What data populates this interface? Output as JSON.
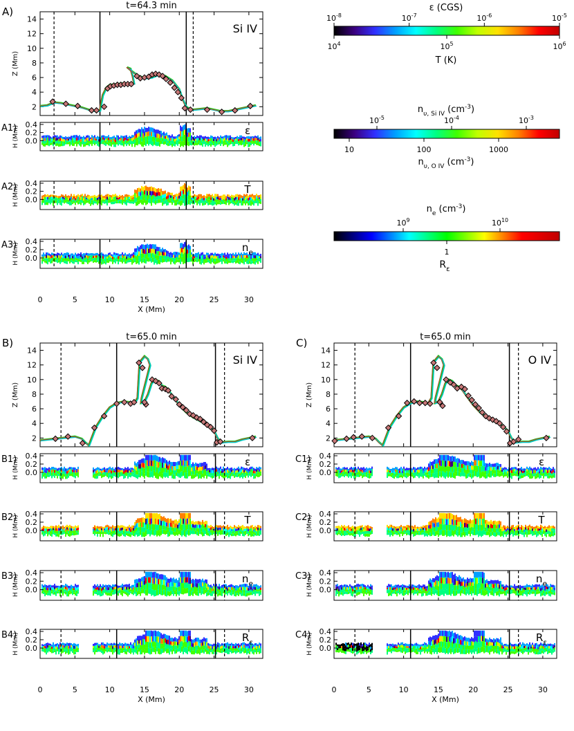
{
  "colors": {
    "line": "#000000",
    "marker_fill": "#c87878",
    "marker_edge": "#000000",
    "loop_green": "#1ec81e",
    "loop_cyan": "#00c8c8",
    "loop_red": "#c83232"
  },
  "colorbar_stops": [
    "#000000",
    "#3b0080",
    "#3030ff",
    "#00a0ff",
    "#00ffff",
    "#00ff80",
    "#40ff00",
    "#c0ff00",
    "#ffe000",
    "#ff8000",
    "#ff0000",
    "#c00000"
  ],
  "r_eps_stops": [
    "#000000",
    "#0000ff",
    "#00ffff",
    "#00ff00",
    "#ffff00",
    "#ff0000",
    "#c00000"
  ],
  "colorbars": {
    "epsilon": {
      "title": "ε (CGS)",
      "top_ticks": [
        "10",
        "10",
        "10",
        "10"
      ],
      "top_exps": [
        "-8",
        "-7",
        "-6",
        "-5"
      ],
      "bottom_ticks": [
        "10",
        "10",
        "10"
      ],
      "bottom_exps": [
        "4",
        "5",
        "6"
      ],
      "bottom_label": "T (K)"
    },
    "density": {
      "title_main": "n",
      "title_sub": "υ, Si IV",
      "title_units": "(cm",
      "title_exp": "-3",
      "top_ticks": [
        "10",
        "10",
        "10"
      ],
      "top_exps": [
        "-5",
        "-4",
        "-3"
      ],
      "bottom_ticks": [
        "10",
        "100",
        "1000"
      ],
      "bottom_label_main": "n",
      "bottom_label_sub": "υ, O IV",
      "bottom_label_units": "(cm",
      "bottom_label_exp": "-3"
    },
    "electron": {
      "title_main": "n",
      "title_sub": "e",
      "title_units": "(cm",
      "title_exp": "-3",
      "top_ticks": [
        "10",
        "10"
      ],
      "top_exps": [
        "9",
        "10"
      ],
      "bottom_tick": "1",
      "bottom_label_main": "R",
      "bottom_label_sub": "ε"
    }
  },
  "chart_data": [
    {
      "id": "A",
      "type": "line",
      "panel_label": "A)",
      "title": "t=64.3 min",
      "ion_label": "Si IV",
      "xlabel": "X (Mm)",
      "ylabel": "Z (Mm)",
      "xlim": [
        0,
        32
      ],
      "ylim": [
        0.8,
        15
      ],
      "x_ticks": [
        "0",
        "5",
        "10",
        "15",
        "20",
        "25",
        "30"
      ],
      "y_ticks": [
        2,
        4,
        6,
        8,
        10,
        12,
        14
      ],
      "solid_lines": [
        8.6,
        21.0
      ],
      "dashed_lines": [
        2.0,
        22.0
      ],
      "loop": {
        "x": [
          0,
          1,
          2,
          3,
          4,
          5,
          6,
          7,
          8,
          8.6,
          9,
          9.5,
          10,
          11,
          12,
          13,
          13.5,
          13.3,
          13,
          12.5,
          13,
          14,
          15,
          16,
          17,
          18,
          19,
          20,
          20.5,
          21,
          21.5,
          22,
          23,
          24,
          25,
          26,
          27,
          28,
          29,
          30,
          31
        ],
        "z": [
          2.1,
          2.2,
          2.6,
          2.5,
          2.3,
          2.1,
          1.9,
          1.6,
          1.4,
          1.5,
          3.6,
          4.6,
          5.0,
          5.1,
          5.2,
          5.2,
          5.2,
          6.2,
          7.2,
          7.4,
          7.0,
          6.3,
          5.9,
          6.0,
          6.4,
          6.2,
          5.6,
          4.4,
          3.0,
          2.0,
          1.7,
          1.6,
          1.7,
          1.8,
          1.6,
          1.4,
          1.4,
          1.6,
          1.8,
          2.0,
          2.2
        ]
      },
      "markers": {
        "x": [
          1.8,
          3.7,
          5.4,
          7.4,
          8.1,
          9.2,
          9.7,
          10.1,
          10.6,
          11.1,
          11.6,
          12.1,
          12.6,
          13.1,
          13.9,
          14.4,
          15.0,
          15.6,
          16.1,
          16.6,
          17.1,
          17.6,
          18.1,
          18.7,
          19.3,
          19.8,
          20.3,
          20.8,
          21.6,
          24.0,
          26.1,
          28.0,
          30.2
        ],
        "z": [
          2.7,
          2.4,
          2.1,
          1.5,
          1.5,
          2.0,
          4.5,
          4.8,
          4.9,
          5.0,
          5.0,
          5.1,
          5.1,
          5.1,
          6.2,
          5.9,
          6.0,
          6.1,
          6.4,
          6.5,
          6.4,
          6.2,
          5.8,
          5.3,
          4.6,
          4.0,
          3.2,
          1.8,
          1.6,
          1.6,
          1.3,
          1.5,
          2.1
        ]
      },
      "strips": [
        {
          "id": "A1",
          "label": "A1)",
          "quantity": "ε",
          "quantity_sub": "",
          "ylabel": "H (Mm)",
          "ylim": [
            -0.25,
            0.45
          ],
          "y_ticks": [
            "0.0",
            "0.2",
            "0.4"
          ]
        },
        {
          "id": "A2",
          "label": "A2)",
          "quantity": "T",
          "quantity_sub": "",
          "ylabel": "H (Mm)",
          "ylim": [
            -0.25,
            0.45
          ],
          "y_ticks": [
            "0.0",
            "0.2",
            "0.4"
          ]
        },
        {
          "id": "A3",
          "label": "A3)",
          "quantity": "n",
          "quantity_sub": "e",
          "ylabel": "H (Mm)",
          "ylim": [
            -0.25,
            0.45
          ],
          "y_ticks": [
            "0.0",
            "0.2",
            "0.4"
          ]
        }
      ]
    },
    {
      "id": "B",
      "type": "line",
      "panel_label": "B)",
      "title": "t=65.0 min",
      "ion_label": "Si IV",
      "xlabel": "X (Mm)",
      "ylabel": "Z (Mm)",
      "xlim": [
        0,
        32
      ],
      "ylim": [
        0.8,
        15
      ],
      "x_ticks": [
        "0",
        "5",
        "10",
        "15",
        "20",
        "25",
        "30"
      ],
      "y_ticks": [
        2,
        4,
        6,
        8,
        10,
        12,
        14
      ],
      "solid_lines": [
        11.0,
        25.2
      ],
      "dashed_lines": [
        3.0,
        26.5
      ],
      "loop": {
        "x": [
          0,
          1,
          2,
          3,
          4,
          5,
          6,
          6.5,
          7,
          8,
          9,
          10,
          11,
          12,
          13,
          13.5,
          14,
          14.3,
          15,
          15.5,
          15.8,
          15.4,
          15,
          14.6,
          14.5,
          15,
          15.5,
          16,
          16.5,
          17,
          17.5,
          18,
          18.5,
          19,
          20,
          21,
          22,
          23,
          24,
          25,
          25.5,
          26,
          27,
          28,
          29,
          30,
          31
        ],
        "z": [
          1.7,
          1.8,
          1.9,
          2.0,
          2.1,
          2.2,
          1.9,
          1.4,
          1.0,
          3.5,
          5.0,
          6.2,
          6.8,
          7.0,
          6.9,
          6.7,
          7.5,
          12.4,
          13.2,
          12.8,
          12.0,
          10.5,
          9.0,
          7.5,
          6.8,
          7.0,
          8.0,
          9.5,
          10.0,
          9.8,
          9.2,
          9.0,
          8.5,
          7.8,
          6.5,
          5.5,
          4.8,
          4.3,
          3.8,
          3.0,
          2.0,
          1.4,
          1.5,
          1.5,
          1.8,
          2.0,
          2.2
        ]
      },
      "markers": {
        "x": [
          2.2,
          4.0,
          6.1,
          7.8,
          9.2,
          11.0,
          12.1,
          13.0,
          13.5,
          14.2,
          14.7,
          15.2,
          15.0,
          16.1,
          16.6,
          17.1,
          17.5,
          18.0,
          18.4,
          18.9,
          19.5,
          20.0,
          20.5,
          21.0,
          21.5,
          22.0,
          22.5,
          23.0,
          23.5,
          24.0,
          24.5,
          25.0,
          25.4,
          25.9,
          30.5
        ],
        "z": [
          1.9,
          2.2,
          1.3,
          3.4,
          5.0,
          6.7,
          6.9,
          6.7,
          6.9,
          12.3,
          11.6,
          6.6,
          6.9,
          10.0,
          9.8,
          9.5,
          8.8,
          8.7,
          8.5,
          7.7,
          7.3,
          6.6,
          6.2,
          5.8,
          5.3,
          5.1,
          4.8,
          4.6,
          4.2,
          3.8,
          3.5,
          3.0,
          1.4,
          1.5,
          2.0
        ]
      },
      "strips": [
        {
          "id": "B1",
          "label": "B1)",
          "quantity": "ε",
          "quantity_sub": "",
          "ylabel": "H (Mm)",
          "ylim": [
            -0.25,
            0.45
          ],
          "y_ticks": [
            "0.0",
            "0.2",
            "0.4"
          ]
        },
        {
          "id": "B2",
          "label": "B2)",
          "quantity": "T",
          "quantity_sub": "",
          "ylabel": "H (Mm)",
          "ylim": [
            -0.25,
            0.45
          ],
          "y_ticks": [
            "0.0",
            "0.2",
            "0.4"
          ]
        },
        {
          "id": "B3",
          "label": "B3)",
          "quantity": "n",
          "quantity_sub": "e",
          "ylabel": "H (Mm)",
          "ylim": [
            -0.25,
            0.45
          ],
          "y_ticks": [
            "0.0",
            "0.2",
            "0.4"
          ]
        },
        {
          "id": "B4",
          "label": "B4)",
          "quantity": "R",
          "quantity_sub": "ε",
          "ylabel": "H (Mm)",
          "ylim": [
            -0.25,
            0.45
          ],
          "y_ticks": [
            "0.0",
            "0.2",
            "0.4"
          ]
        }
      ]
    },
    {
      "id": "C",
      "type": "line",
      "panel_label": "C)",
      "title": "t=65.0 min",
      "ion_label": "O IV",
      "xlabel": "X (Mm)",
      "ylabel": "Z (Mm)",
      "xlim": [
        0,
        32
      ],
      "ylim": [
        0.8,
        15
      ],
      "x_ticks": [
        "0",
        "5",
        "10",
        "15",
        "20",
        "25",
        "30"
      ],
      "y_ticks": [
        2,
        4,
        6,
        8,
        10,
        12,
        14
      ],
      "solid_lines": [
        11.0,
        25.2
      ],
      "dashed_lines": [
        3.0,
        26.5
      ],
      "loop": {
        "x": [
          0,
          1,
          2,
          3,
          4,
          5,
          6,
          6.5,
          7,
          8,
          9,
          10,
          11,
          12,
          13,
          13.5,
          14,
          14.3,
          15,
          15.5,
          15.8,
          15.4,
          15,
          14.6,
          14.5,
          15,
          15.5,
          16,
          16.5,
          17,
          17.5,
          18,
          18.5,
          19,
          20,
          21,
          22,
          23,
          24,
          25,
          25.5,
          26,
          27,
          28,
          29,
          30,
          31
        ],
        "z": [
          1.7,
          1.8,
          1.9,
          2.0,
          2.1,
          2.2,
          1.9,
          1.4,
          1.0,
          3.5,
          5.0,
          6.2,
          6.8,
          7.0,
          6.9,
          6.7,
          7.5,
          12.4,
          13.2,
          12.8,
          12.0,
          10.5,
          9.0,
          7.5,
          6.8,
          7.0,
          8.0,
          9.5,
          10.0,
          9.8,
          9.2,
          9.0,
          8.5,
          7.8,
          6.5,
          5.5,
          4.8,
          4.3,
          3.8,
          3.0,
          2.0,
          1.4,
          1.5,
          1.5,
          1.8,
          2.0,
          2.2
        ]
      },
      "markers": {
        "x": [
          0.1,
          1.8,
          2.8,
          4.0,
          5.5,
          7.8,
          9.3,
          10.5,
          11.5,
          12.3,
          13.1,
          13.8,
          14.3,
          14.8,
          15.2,
          15.6,
          16.1,
          16.7,
          17.2,
          17.7,
          18.3,
          18.8,
          19.3,
          19.8,
          20.3,
          20.8,
          21.3,
          21.8,
          22.3,
          22.8,
          23.3,
          23.8,
          24.3,
          24.8,
          25.3,
          25.8,
          26.5,
          30.5
        ],
        "z": [
          1.6,
          1.9,
          2.1,
          2.2,
          2.0,
          3.4,
          5.0,
          6.8,
          7.0,
          6.8,
          6.8,
          6.7,
          12.3,
          11.6,
          6.9,
          6.4,
          10.0,
          9.6,
          9.3,
          8.8,
          9.0,
          8.7,
          7.8,
          7.2,
          6.6,
          6.1,
          5.5,
          5.0,
          4.7,
          4.5,
          4.3,
          4.0,
          3.5,
          2.9,
          1.3,
          1.5,
          1.8,
          2.0
        ]
      },
      "strips": [
        {
          "id": "C1",
          "label": "C1)",
          "quantity": "ε",
          "quantity_sub": "",
          "ylabel": "H (Mm)",
          "ylim": [
            -0.25,
            0.45
          ],
          "y_ticks": [
            "0.0",
            "0.2",
            "0.4"
          ]
        },
        {
          "id": "C2",
          "label": "C2)",
          "quantity": "T",
          "quantity_sub": "",
          "ylabel": "H (Mm)",
          "ylim": [
            -0.25,
            0.45
          ],
          "y_ticks": [
            "0.0",
            "0.2",
            "0.4"
          ]
        },
        {
          "id": "C3",
          "label": "C3)",
          "quantity": "n",
          "quantity_sub": "e",
          "ylabel": "H (Mm)",
          "ylim": [
            -0.25,
            0.45
          ],
          "y_ticks": [
            "0.0",
            "0.2",
            "0.4"
          ]
        },
        {
          "id": "C4",
          "label": "C4)",
          "quantity": "R",
          "quantity_sub": "ε",
          "ylabel": "H (Mm)",
          "ylim": [
            -0.25,
            0.45
          ],
          "y_ticks": [
            "0.0",
            "0.2",
            "0.4"
          ]
        }
      ]
    }
  ]
}
